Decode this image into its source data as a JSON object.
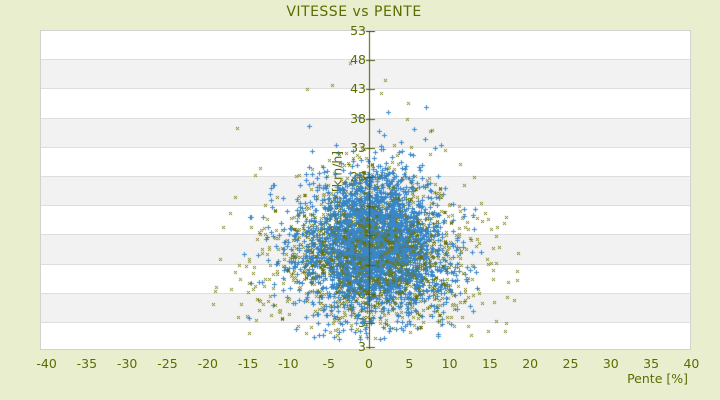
{
  "window": {
    "background_color": "#e9efce",
    "text_color": "#5c6b00"
  },
  "chart_data": {
    "type": "scatter",
    "title": "VITESSE vs PENTE",
    "xlabel": "Pente [%]",
    "ylabel": "Vitesse [km/h]",
    "xlim": [
      -40,
      40
    ],
    "ylim": [
      3,
      53
    ],
    "x_ticks": [
      -40,
      -35,
      -30,
      -25,
      -20,
      -15,
      -10,
      -5,
      0,
      5,
      10,
      15,
      20,
      25,
      30,
      35,
      40
    ],
    "y_ticks": [
      53,
      48,
      43,
      38,
      33,
      28,
      23,
      18,
      13,
      8,
      3
    ],
    "y_axis_end_label": "3",
    "grid": "alternating-horizontal-bands",
    "legend": "none",
    "vertical_axis_line_x": 0,
    "colors": {
      "plot_background": "#ffffff",
      "band": "#f2f2f2",
      "grid_line": "#dedede",
      "axis_line": "#4c5400",
      "labels": "#5c6b00"
    },
    "series": [
      {
        "name": "pente-vitesse-olive",
        "marker": "x",
        "color": "#6c7000",
        "count": 1500,
        "x_center": 0.5,
        "x_spread": 5.6,
        "y_center": 14.8,
        "y_spread": 7.0,
        "x_range": [
          -19.5,
          18.5
        ],
        "y_range": [
          0.2,
          46.5
        ]
      },
      {
        "name": "pente-vitesse-blue",
        "marker": "+",
        "color": "#3a87c8",
        "count": 3000,
        "x_center": 0.8,
        "x_spread": 3.4,
        "y_center": 16.2,
        "y_spread": 6.1,
        "x_range": [
          -16,
          14.5
        ],
        "y_range": [
          0.2,
          41
        ]
      }
    ],
    "outlier_points": {
      "olive": [
        [
          -7.7,
          43.1
        ],
        [
          -2.4,
          47.6
        ],
        [
          1.5,
          42.3
        ],
        [
          -16.4,
          36.4
        ],
        [
          2.0,
          44.6
        ],
        [
          -4.6,
          43.8
        ],
        [
          4.8,
          40.7
        ],
        [
          13.9,
          23.5
        ],
        [
          -14.2,
          28.3
        ]
      ],
      "blue": [
        [
          -1.2,
          38.3
        ],
        [
          2.3,
          39.2
        ],
        [
          -7.4,
          36.8
        ],
        [
          5.6,
          36.2
        ],
        [
          11.8,
          21.4
        ]
      ]
    }
  }
}
